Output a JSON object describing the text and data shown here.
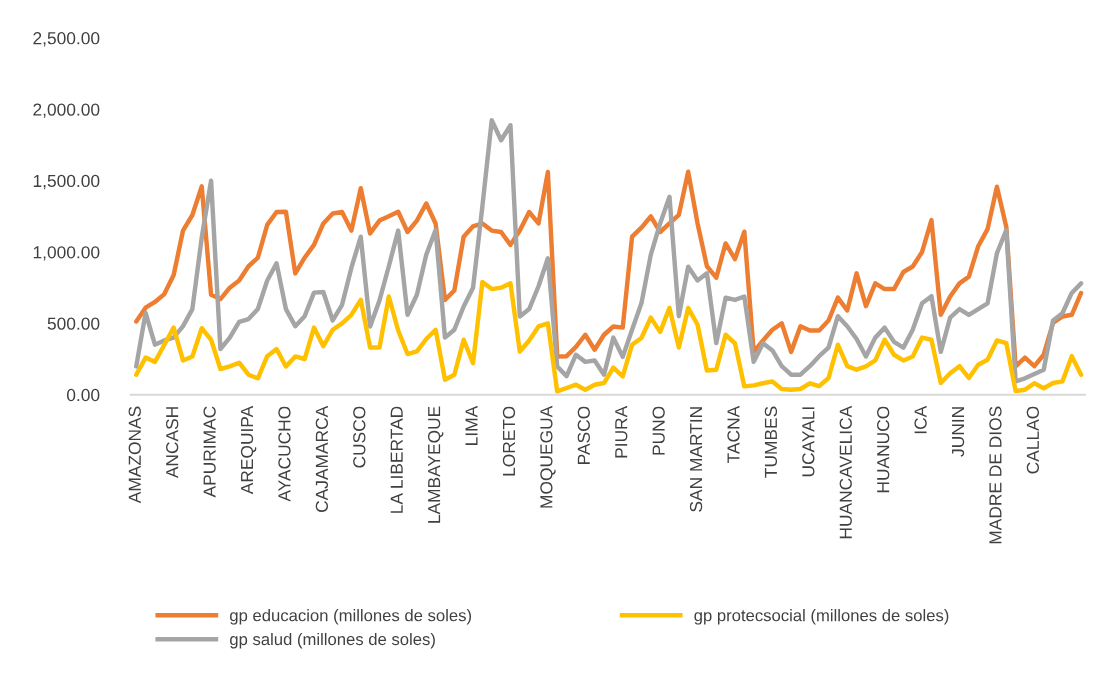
{
  "chart_data": {
    "type": "line",
    "categories": [
      "AMAZONAS",
      null,
      null,
      null,
      "ANCASH",
      null,
      null,
      null,
      "APURIMAC",
      null,
      null,
      null,
      "AREQUIPA",
      null,
      null,
      null,
      "AYACUCHO",
      null,
      null,
      null,
      "CAJAMARCA",
      null,
      null,
      null,
      "CUSCO",
      null,
      null,
      null,
      "LA LIBERTAD",
      null,
      null,
      null,
      "LAMBAYEQUE",
      null,
      null,
      null,
      "LIMA",
      null,
      null,
      null,
      "LORETO",
      null,
      null,
      null,
      "MOQUEGUA",
      null,
      null,
      null,
      "PASCO",
      null,
      null,
      null,
      "PIURA",
      null,
      null,
      null,
      "PUNO",
      null,
      null,
      null,
      "SAN MARTIN",
      null,
      null,
      null,
      "TACNA",
      null,
      null,
      null,
      "TUMBES",
      null,
      null,
      null,
      "UCAYALI",
      null,
      null,
      null,
      "HUANCAVELICA",
      null,
      null,
      null,
      "HUANUCO",
      null,
      null,
      null,
      "ICA",
      null,
      null,
      null,
      "JUNIN",
      null,
      null,
      null,
      "MADRE DE DIOS",
      null,
      null,
      null,
      "CALLAO",
      null,
      null,
      null,
      null,
      null
    ],
    "series": [
      {
        "name": "gp educacion (millones de soles)",
        "color": "#ed7d31",
        "values": [
          513,
          610,
          650,
          705,
          839,
          1150,
          1259,
          1460,
          700,
          670,
          750,
          800,
          900,
          960,
          1190,
          1280,
          1282,
          850,
          960,
          1050,
          1200,
          1270,
          1280,
          1150,
          1447,
          1130,
          1220,
          1250,
          1282,
          1140,
          1220,
          1340,
          1200,
          664,
          730,
          1107,
          1180,
          1200,
          1150,
          1140,
          1050,
          1150,
          1280,
          1200,
          1560,
          268,
          270,
          335,
          420,
          315,
          420,
          478,
          470,
          1107,
          1170,
          1250,
          1140,
          1200,
          1260,
          1562,
          1200,
          900,
          820,
          1060,
          950,
          1142,
          300,
          380,
          455,
          500,
          300,
          480,
          450,
          450,
          520,
          680,
          590,
          850,
          620,
          780,
          740,
          740,
          860,
          898,
          1000,
          1224,
          560,
          688,
          780,
          827,
          1040,
          1160,
          1457,
          1177,
          198,
          260,
          200,
          280,
          503,
          548,
          560,
          713
        ]
      },
      {
        "name": "gp salud (millones de soles)",
        "color": "#a5a5a5",
        "values": [
          198,
          573,
          350,
          380,
          400,
          480,
          600,
          1100,
          1500,
          320,
          400,
          510,
          530,
          600,
          800,
          920,
          600,
          480,
          550,
          715,
          720,
          520,
          630,
          890,
          1107,
          478,
          660,
          900,
          1150,
          560,
          700,
          980,
          1154,
          400,
          455,
          618,
          750,
          1320,
          1923,
          1783,
          1888,
          548,
          600,
          760,
          956,
          198,
          130,
          280,
          230,
          240,
          140,
          400,
          265,
          455,
          640,
          980,
          1200,
          1387,
          550,
          897,
          800,
          851,
          362,
          680,
          664,
          688,
          230,
          360,
          310,
          200,
          140,
          140,
          200,
          270,
          330,
          550,
          480,
          390,
          268,
          400,
          470,
          370,
          330,
          455,
          640,
          690,
          300,
          540,
          600,
          560,
          600,
          640,
          991,
          1154,
          93,
          115,
          145,
          175,
          520,
          571,
          713,
          780
        ]
      },
      {
        "name": "gp protecsocial (millones de soles)",
        "color": "#ffc000",
        "values": [
          140,
          260,
          230,
          350,
          470,
          240,
          268,
          466,
          385,
          180,
          198,
          224,
          140,
          115,
          270,
          320,
          198,
          268,
          250,
          470,
          340,
          455,
          500,
          560,
          664,
          330,
          330,
          688,
          450,
          285,
          303,
          390,
          455,
          105,
          140,
          385,
          220,
          790,
          740,
          750,
          781,
          303,
          380,
          478,
          500,
          23,
          47,
          70,
          35,
          70,
          82,
          190,
          128,
          350,
          397,
          540,
          440,
          608,
          330,
          608,
          490,
          170,
          175,
          420,
          360,
          58,
          65,
          80,
          93,
          40,
          35,
          40,
          80,
          60,
          117,
          350,
          200,
          175,
          198,
          240,
          385,
          280,
          240,
          268,
          400,
          385,
          82,
          150,
          200,
          117,
          210,
          245,
          380,
          362,
          25,
          35,
          80,
          45,
          82,
          93,
          270,
          140
        ]
      }
    ],
    "ylim": [
      0,
      2500
    ],
    "yticks": [
      {
        "value": 0,
        "label": "0.00"
      },
      {
        "value": 500,
        "label": "500.00"
      },
      {
        "value": 1000,
        "label": "1,000.00"
      },
      {
        "value": 1500,
        "label": "1,500.00"
      },
      {
        "value": 2000,
        "label": "2,000.00"
      },
      {
        "value": 2500,
        "label": "2,500.00"
      }
    ],
    "legend": "bottom"
  }
}
